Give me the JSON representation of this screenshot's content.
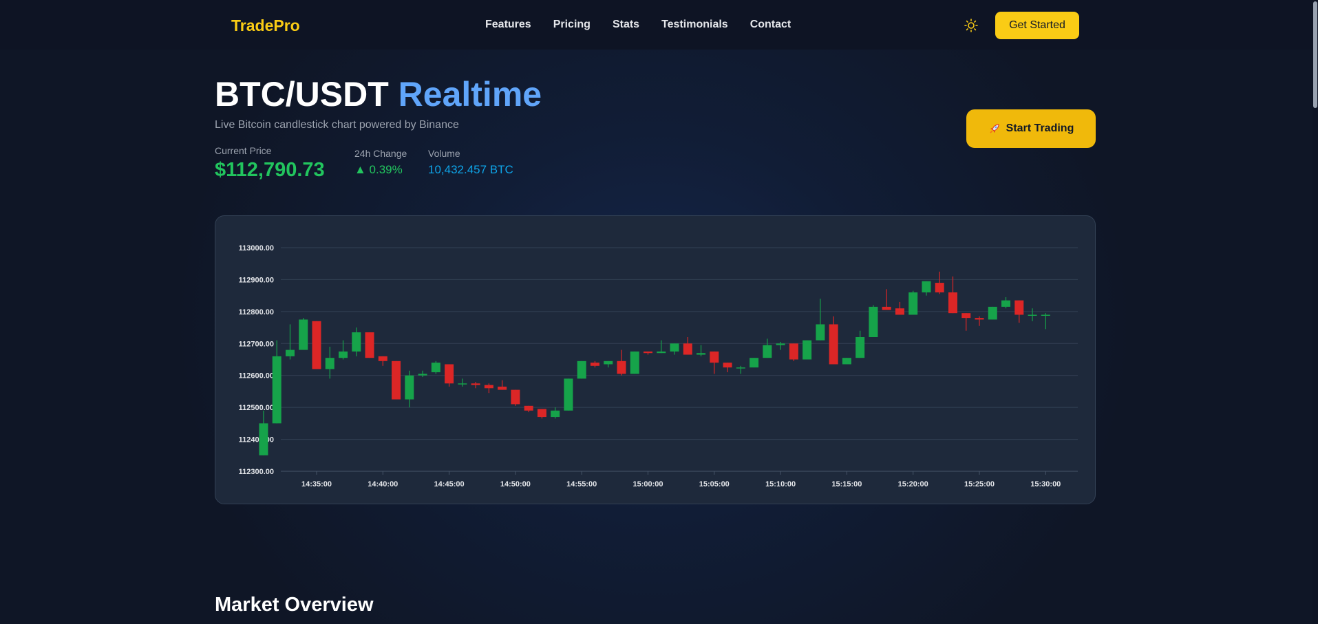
{
  "nav": {
    "brand": "TradePro",
    "links": [
      "Features",
      "Pricing",
      "Stats",
      "Testimonials",
      "Contact"
    ],
    "theme_icon": "sun-icon",
    "cta_label": "Get Started"
  },
  "hero": {
    "title_main": "BTC/USDT ",
    "title_accent": "Realtime",
    "subtitle": "Live Bitcoin candlestick chart powered by Binance",
    "current_price_label": "Current Price",
    "current_price": "$112,790.73",
    "change_label": "24h Change",
    "change_value": "▲ 0.39%",
    "volume_label": "Volume",
    "volume_value": "10,432.457 BTC",
    "trade_label": "Start Trading",
    "trade_icon": "rocket-icon"
  },
  "section": {
    "title": "Market Overview"
  },
  "colors": {
    "accent": "#facc15",
    "up": "#16a34a",
    "down": "#dc2626",
    "link": "#60a5fa"
  },
  "chart_data": {
    "type": "candlestick",
    "y_ticks": [
      "113000.00",
      "112900.00",
      "112800.00",
      "112700.00",
      "112600.00",
      "112500.00",
      "112400.00",
      "112300.00"
    ],
    "ylim": [
      112300,
      113000
    ],
    "x_ticks": [
      "14:35:00",
      "14:40:00",
      "14:45:00",
      "14:50:00",
      "14:55:00",
      "15:00:00",
      "15:05:00",
      "15:10:00",
      "15:15:00",
      "15:20:00",
      "15:25:00",
      "15:30:00"
    ],
    "grid": true,
    "candles": [
      {
        "o": 112350,
        "h": 112490,
        "l": 112350,
        "c": 112450
      },
      {
        "o": 112450,
        "h": 112710,
        "l": 112450,
        "c": 112660
      },
      {
        "o": 112660,
        "h": 112760,
        "l": 112650,
        "c": 112680
      },
      {
        "o": 112680,
        "h": 112780,
        "l": 112680,
        "c": 112775
      },
      {
        "o": 112770,
        "h": 112770,
        "l": 112620,
        "c": 112620
      },
      {
        "o": 112620,
        "h": 112690,
        "l": 112590,
        "c": 112655
      },
      {
        "o": 112655,
        "h": 112710,
        "l": 112650,
        "c": 112675
      },
      {
        "o": 112675,
        "h": 112750,
        "l": 112660,
        "c": 112735
      },
      {
        "o": 112735,
        "h": 112735,
        "l": 112655,
        "c": 112655
      },
      {
        "o": 112660,
        "h": 112660,
        "l": 112630,
        "c": 112645
      },
      {
        "o": 112645,
        "h": 112645,
        "l": 112525,
        "c": 112525
      },
      {
        "o": 112525,
        "h": 112615,
        "l": 112500,
        "c": 112600
      },
      {
        "o": 112600,
        "h": 112615,
        "l": 112595,
        "c": 112605
      },
      {
        "o": 112610,
        "h": 112645,
        "l": 112605,
        "c": 112640
      },
      {
        "o": 112635,
        "h": 112635,
        "l": 112565,
        "c": 112575
      },
      {
        "o": 112575,
        "h": 112590,
        "l": 112565,
        "c": 112575
      },
      {
        "o": 112575,
        "h": 112580,
        "l": 112560,
        "c": 112570
      },
      {
        "o": 112570,
        "h": 112575,
        "l": 112545,
        "c": 112560
      },
      {
        "o": 112565,
        "h": 112585,
        "l": 112555,
        "c": 112555
      },
      {
        "o": 112555,
        "h": 112555,
        "l": 112505,
        "c": 112510
      },
      {
        "o": 112505,
        "h": 112505,
        "l": 112485,
        "c": 112490
      },
      {
        "o": 112495,
        "h": 112495,
        "l": 112465,
        "c": 112470
      },
      {
        "o": 112470,
        "h": 112500,
        "l": 112465,
        "c": 112490
      },
      {
        "o": 112490,
        "h": 112590,
        "l": 112490,
        "c": 112590
      },
      {
        "o": 112590,
        "h": 112645,
        "l": 112590,
        "c": 112645
      },
      {
        "o": 112640,
        "h": 112645,
        "l": 112625,
        "c": 112630
      },
      {
        "o": 112635,
        "h": 112645,
        "l": 112625,
        "c": 112645
      },
      {
        "o": 112645,
        "h": 112680,
        "l": 112600,
        "c": 112605
      },
      {
        "o": 112605,
        "h": 112675,
        "l": 112605,
        "c": 112675
      },
      {
        "o": 112675,
        "h": 112675,
        "l": 112665,
        "c": 112670
      },
      {
        "o": 112670,
        "h": 112710,
        "l": 112670,
        "c": 112675
      },
      {
        "o": 112675,
        "h": 112700,
        "l": 112665,
        "c": 112700
      },
      {
        "o": 112700,
        "h": 112720,
        "l": 112665,
        "c": 112665
      },
      {
        "o": 112665,
        "h": 112695,
        "l": 112660,
        "c": 112670
      },
      {
        "o": 112675,
        "h": 112675,
        "l": 112605,
        "c": 112640
      },
      {
        "o": 112640,
        "h": 112640,
        "l": 112610,
        "c": 112625
      },
      {
        "o": 112625,
        "h": 112630,
        "l": 112605,
        "c": 112625
      },
      {
        "o": 112625,
        "h": 112655,
        "l": 112625,
        "c": 112655
      },
      {
        "o": 112655,
        "h": 112715,
        "l": 112655,
        "c": 112695
      },
      {
        "o": 112695,
        "h": 112705,
        "l": 112680,
        "c": 112700
      },
      {
        "o": 112700,
        "h": 112700,
        "l": 112645,
        "c": 112650
      },
      {
        "o": 112650,
        "h": 112710,
        "l": 112650,
        "c": 112710
      },
      {
        "o": 112710,
        "h": 112840,
        "l": 112710,
        "c": 112760
      },
      {
        "o": 112760,
        "h": 112785,
        "l": 112635,
        "c": 112635
      },
      {
        "o": 112635,
        "h": 112655,
        "l": 112635,
        "c": 112655
      },
      {
        "o": 112655,
        "h": 112740,
        "l": 112655,
        "c": 112720
      },
      {
        "o": 112720,
        "h": 112820,
        "l": 112720,
        "c": 112815
      },
      {
        "o": 112815,
        "h": 112870,
        "l": 112805,
        "c": 112805
      },
      {
        "o": 112810,
        "h": 112830,
        "l": 112790,
        "c": 112790
      },
      {
        "o": 112790,
        "h": 112865,
        "l": 112790,
        "c": 112860
      },
      {
        "o": 112860,
        "h": 112895,
        "l": 112850,
        "c": 112895
      },
      {
        "o": 112890,
        "h": 112925,
        "l": 112855,
        "c": 112860
      },
      {
        "o": 112860,
        "h": 112910,
        "l": 112795,
        "c": 112795
      },
      {
        "o": 112795,
        "h": 112795,
        "l": 112740,
        "c": 112780
      },
      {
        "o": 112780,
        "h": 112785,
        "l": 112755,
        "c": 112775
      },
      {
        "o": 112775,
        "h": 112815,
        "l": 112775,
        "c": 112815
      },
      {
        "o": 112815,
        "h": 112845,
        "l": 112810,
        "c": 112835
      },
      {
        "o": 112835,
        "h": 112835,
        "l": 112765,
        "c": 112790
      },
      {
        "o": 112790,
        "h": 112810,
        "l": 112770,
        "c": 112790
      },
      {
        "o": 112790,
        "h": 112795,
        "l": 112745,
        "c": 112790
      }
    ]
  }
}
